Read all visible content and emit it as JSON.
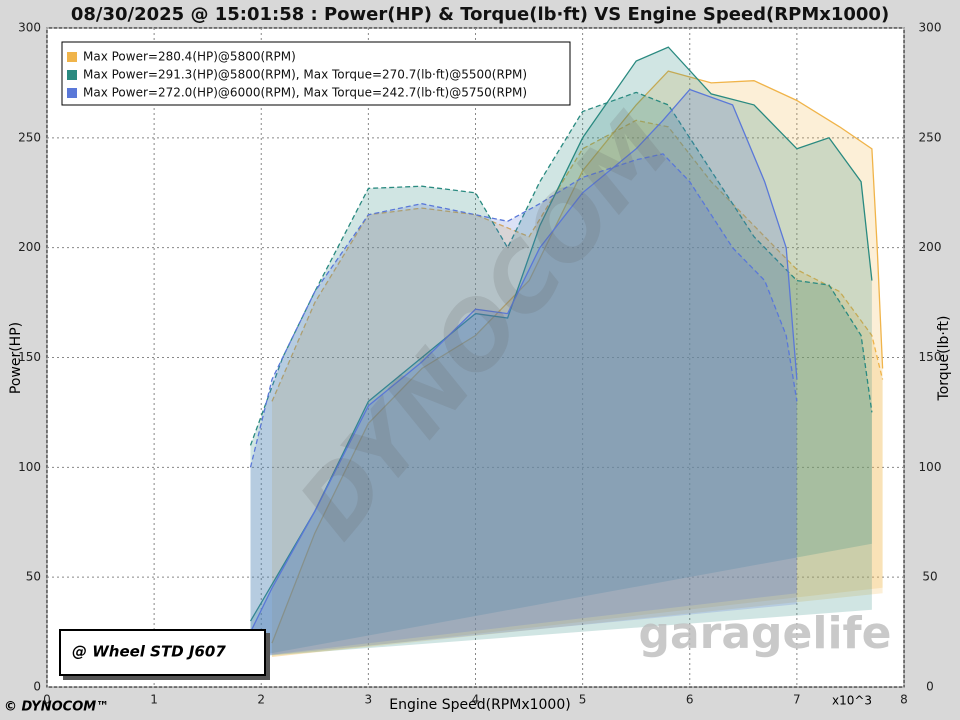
{
  "chart_data": {
    "type": "line",
    "title": "08/30/2025 @ 15:01:58 : Power(HP) & Torque(lb·ft) VS Engine Speed(RPMx1000)",
    "x_label": "Engine Speed(RPMx1000)",
    "x_unit": "x10^3",
    "y_label": "Power(HP)",
    "y2_label": "Torque(lb·ft)",
    "xlim": [
      0,
      8
    ],
    "xticks": [
      0,
      1,
      2,
      3,
      4,
      5,
      6,
      7,
      8
    ],
    "ylim": [
      0,
      300
    ],
    "yticks": [
      0,
      50,
      100,
      150,
      200,
      250,
      300
    ],
    "y2lim": [
      0,
      300
    ],
    "y2ticks": [
      0,
      50,
      100,
      150,
      200,
      250,
      300
    ],
    "grid": true,
    "legend": "top-left",
    "annotation": "@ Wheel STD J607",
    "footer": "© DYNOCOM™",
    "watermark": "DYNOCOM",
    "brand": "garagelife",
    "series": [
      {
        "name": "Max Power=280.4(HP)@5800(RPM)",
        "color": "#f0b44a",
        "x": [
          2.1,
          2.5,
          3,
          3.5,
          4,
          4.5,
          5,
          5.5,
          5.8,
          6.2,
          6.6,
          7,
          7.4,
          7.7,
          7.75,
          7.8
        ],
        "power": [
          20,
          70,
          120,
          145,
          160,
          185,
          235,
          265,
          280.4,
          275,
          276,
          267,
          255,
          245,
          200,
          145
        ],
        "torque": [
          130,
          175,
          215,
          218,
          215,
          205,
          245,
          258,
          255,
          230,
          210,
          190,
          180,
          160,
          150,
          140
        ]
      },
      {
        "name": "Max Power=291.3(HP)@5800(RPM), Max Torque=270.7(lb·ft)@5500(RPM)",
        "color": "#2a8a80",
        "x": [
          1.9,
          2.2,
          2.5,
          3,
          3.5,
          4,
          4.3,
          4.6,
          5,
          5.5,
          5.8,
          6.2,
          6.6,
          7,
          7.3,
          7.6,
          7.7
        ],
        "power": [
          30,
          55,
          80,
          130,
          150,
          170,
          168,
          210,
          250,
          285,
          291.3,
          270,
          265,
          245,
          250,
          230,
          185
        ],
        "torque": [
          110,
          150,
          180,
          227,
          228,
          225,
          200,
          230,
          262,
          270.7,
          265,
          235,
          205,
          185,
          183,
          160,
          125
        ]
      },
      {
        "name": "Max Power=272.0(HP)@6000(RPM), Max Torque=242.7(lb·ft)@5750(RPM)",
        "color": "#5a78d8",
        "x": [
          1.9,
          2.1,
          2.5,
          3,
          3.5,
          4,
          4.3,
          4.6,
          5,
          5.5,
          5.75,
          6,
          6.4,
          6.7,
          6.9,
          7.0
        ],
        "power": [
          25,
          45,
          80,
          128,
          148,
          172,
          170,
          200,
          225,
          245,
          258,
          272,
          265,
          230,
          200,
          140
        ],
        "torque": [
          100,
          140,
          180,
          215,
          220,
          215,
          212,
          220,
          232,
          240,
          242.7,
          230,
          200,
          185,
          160,
          130
        ]
      }
    ]
  }
}
